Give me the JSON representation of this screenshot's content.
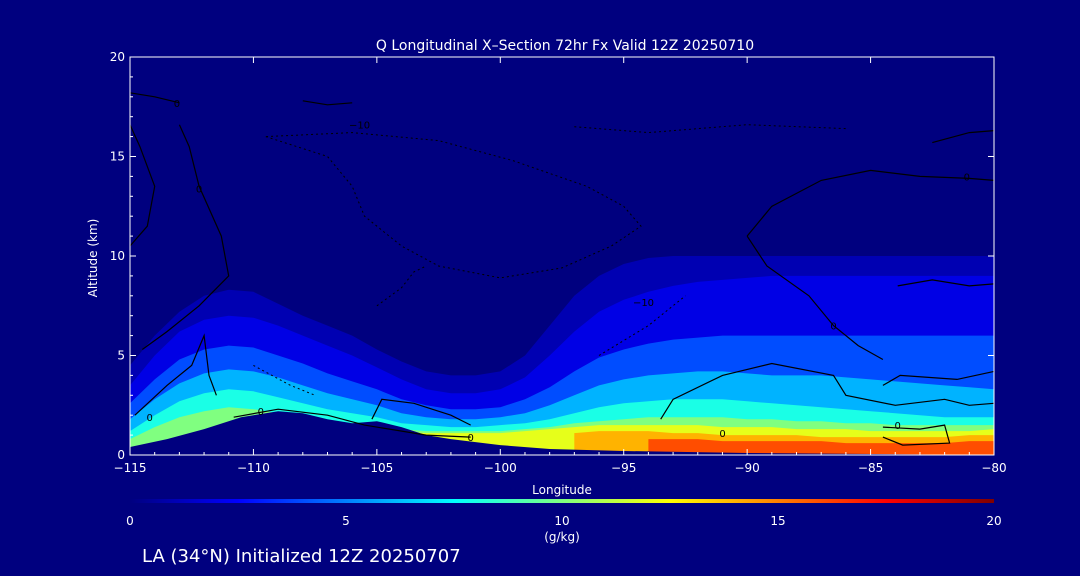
{
  "chart_data": {
    "type": "contour",
    "title": "Q Longitudinal X–Section 72hr  Fx Valid 12Z 20250710",
    "xlabel": "Longitude",
    "ylabel": "Altitude (km)",
    "xlim": [
      -115,
      -80
    ],
    "ylim": [
      0,
      20
    ],
    "x_ticks": [
      -115,
      -110,
      -105,
      -100,
      -95,
      -90,
      -85,
      -80
    ],
    "x_tick_labels": [
      "−115",
      "−110",
      "−105",
      "−100",
      "−95",
      "−90",
      "−85",
      "−80"
    ],
    "y_ticks": [
      0,
      5,
      10,
      15,
      20
    ],
    "y_tick_labels": [
      "0",
      "5",
      "10",
      "15",
      "20"
    ],
    "colorbar": {
      "label": "(g/kg)",
      "range": [
        0,
        20
      ],
      "ticks": [
        0,
        5,
        10,
        15,
        20
      ],
      "tick_labels": [
        "0",
        "5",
        "10",
        "15",
        "20"
      ],
      "colors": [
        "#00007f",
        "#0000ff",
        "#0080ff",
        "#00ffff",
        "#80ff80",
        "#ffff00",
        "#ff8000",
        "#ff0000",
        "#7f0000"
      ]
    },
    "moisture_profile_km_by_level": [
      {
        "q": 1,
        "alt": [
          4.5,
          6.0,
          7.2,
          8.0,
          8.3,
          8.2,
          7.6,
          7.0,
          6.5,
          6.0,
          5.3,
          4.7,
          4.2,
          4.0,
          4.0,
          4.2,
          5.0,
          6.5,
          8.0,
          9.0,
          9.6,
          9.9,
          10.0,
          10.0,
          10.0,
          10.0,
          10.0,
          10.0,
          10.0,
          10.0,
          10.0,
          10.0,
          10.0,
          10.0,
          10.0,
          10.0
        ]
      },
      {
        "q": 2,
        "alt": [
          3.5,
          5.0,
          6.2,
          6.8,
          7.0,
          6.9,
          6.5,
          6.0,
          5.5,
          5.0,
          4.4,
          3.8,
          3.3,
          3.1,
          3.1,
          3.3,
          3.9,
          5.0,
          6.2,
          7.2,
          7.8,
          8.2,
          8.5,
          8.7,
          8.8,
          8.9,
          9.0,
          9.0,
          9.0,
          9.0,
          9.0,
          9.0,
          9.0,
          9.0,
          9.0,
          9.0
        ]
      },
      {
        "q": 4,
        "alt": [
          2.6,
          3.8,
          4.8,
          5.3,
          5.5,
          5.4,
          5.0,
          4.6,
          4.1,
          3.7,
          3.3,
          2.8,
          2.5,
          2.3,
          2.3,
          2.4,
          2.8,
          3.4,
          4.2,
          4.9,
          5.3,
          5.6,
          5.8,
          5.9,
          6.0,
          6.0,
          6.0,
          6.0,
          6.0,
          6.0,
          6.0,
          6.0,
          6.0,
          6.0,
          6.0,
          6.0
        ]
      },
      {
        "q": 6,
        "alt": [
          1.8,
          2.8,
          3.6,
          4.1,
          4.3,
          4.2,
          3.9,
          3.5,
          3.1,
          2.8,
          2.5,
          2.1,
          1.9,
          1.8,
          1.8,
          1.9,
          2.1,
          2.5,
          3.0,
          3.5,
          3.8,
          4.0,
          4.1,
          4.2,
          4.2,
          4.1,
          4.0,
          4.0,
          4.0,
          3.9,
          3.8,
          3.7,
          3.6,
          3.5,
          3.4,
          3.3
        ]
      },
      {
        "q": 8,
        "alt": [
          1.2,
          2.0,
          2.7,
          3.1,
          3.3,
          3.2,
          2.9,
          2.6,
          2.3,
          2.1,
          1.9,
          1.6,
          1.5,
          1.4,
          1.4,
          1.5,
          1.6,
          1.8,
          2.1,
          2.4,
          2.6,
          2.7,
          2.8,
          2.8,
          2.8,
          2.7,
          2.6,
          2.5,
          2.4,
          2.3,
          2.2,
          2.1,
          2.0,
          1.9,
          1.9,
          1.9
        ]
      },
      {
        "q": 10,
        "alt": [
          0.8,
          1.4,
          1.9,
          2.2,
          2.4,
          2.3,
          2.1,
          1.9,
          1.7,
          1.6,
          1.5,
          1.3,
          1.2,
          1.2,
          1.2,
          1.2,
          1.3,
          1.4,
          1.6,
          1.7,
          1.8,
          1.9,
          1.9,
          1.9,
          1.9,
          1.8,
          1.8,
          1.7,
          1.7,
          1.6,
          1.6,
          1.5,
          1.5,
          1.5,
          1.5,
          1.5
        ]
      },
      {
        "q": 12,
        "alt": [
          0,
          0,
          0,
          0,
          0,
          0,
          0,
          0,
          0,
          0,
          0,
          1.2,
          1.1,
          1.1,
          1.1,
          1.1,
          1.2,
          1.3,
          1.4,
          1.5,
          1.5,
          1.5,
          1.5,
          1.5,
          1.4,
          1.4,
          1.4,
          1.3,
          1.3,
          1.3,
          1.2,
          1.2,
          1.2,
          1.2,
          1.2,
          1.3
        ]
      },
      {
        "q": 14,
        "alt": [
          0,
          0,
          0,
          0,
          0,
          0,
          0,
          0,
          0,
          0,
          0,
          0,
          0,
          0,
          0,
          0,
          0,
          0,
          1.1,
          1.2,
          1.2,
          1.2,
          1.1,
          1.1,
          1.0,
          1.0,
          1.0,
          1.0,
          0.9,
          0.9,
          0.9,
          0.9,
          0.9,
          0.9,
          1.0,
          1.0
        ]
      },
      {
        "q": 16,
        "alt": [
          0,
          0,
          0,
          0,
          0,
          0,
          0,
          0,
          0,
          0,
          0,
          0,
          0,
          0,
          0,
          0,
          0,
          0,
          0,
          0,
          0,
          0.8,
          0.8,
          0.8,
          0.7,
          0.7,
          0.7,
          0.7,
          0.7,
          0.6,
          0.6,
          0.6,
          0.6,
          0.6,
          0.7,
          0.7
        ]
      }
    ],
    "profile_longitudes": [
      -115,
      -114,
      -113,
      -112,
      -111,
      -110,
      -109,
      -108,
      -107,
      -106,
      -105,
      -104,
      -103,
      -102,
      -101,
      -100,
      -99,
      -98,
      -97,
      -96,
      -95,
      -94,
      -93,
      -92,
      -91,
      -90,
      -89,
      -88,
      -87,
      -86,
      -85,
      -84,
      -83,
      -82,
      -81,
      -80
    ],
    "terrain_km": [
      {
        "lon": -115,
        "alt": 0.4
      },
      {
        "lon": -113.5,
        "alt": 0.8
      },
      {
        "lon": -112,
        "alt": 1.3
      },
      {
        "lon": -110.5,
        "alt": 1.9
      },
      {
        "lon": -109,
        "alt": 2.2
      },
      {
        "lon": -108,
        "alt": 2.1
      },
      {
        "lon": -107,
        "alt": 1.8
      },
      {
        "lon": -106,
        "alt": 1.6
      },
      {
        "lon": -105,
        "alt": 1.7
      },
      {
        "lon": -104,
        "alt": 1.4
      },
      {
        "lon": -103,
        "alt": 1.0
      },
      {
        "lon": -102,
        "alt": 0.8
      },
      {
        "lon": -100,
        "alt": 0.5
      },
      {
        "lon": -98,
        "alt": 0.3
      },
      {
        "lon": -95,
        "alt": 0.2
      },
      {
        "lon": -90,
        "alt": 0.1
      },
      {
        "lon": -80,
        "alt": 0.0
      }
    ],
    "contour_labels": [
      {
        "text": "0",
        "lon": -112.2,
        "alt": 13.4
      },
      {
        "text": "0",
        "lon": -113.1,
        "alt": 17.7
      },
      {
        "text": "0",
        "lon": -114.2,
        "alt": 1.9
      },
      {
        "text": "0",
        "lon": -109.7,
        "alt": 2.2
      },
      {
        "text": "0",
        "lon": -101.2,
        "alt": 0.9
      },
      {
        "text": "0",
        "lon": -91.0,
        "alt": 1.1
      },
      {
        "text": "0",
        "lon": -86.5,
        "alt": 6.5
      },
      {
        "text": "0",
        "lon": -83.9,
        "alt": 1.5
      },
      {
        "text": "0",
        "lon": -81.1,
        "alt": 14.0
      },
      {
        "text": "−10",
        "lon": -105.7,
        "alt": 16.6
      },
      {
        "text": "−10",
        "lon": -94.2,
        "alt": 7.7
      }
    ],
    "annotation": "LA (34°N) Initialized 12Z 20250707"
  }
}
